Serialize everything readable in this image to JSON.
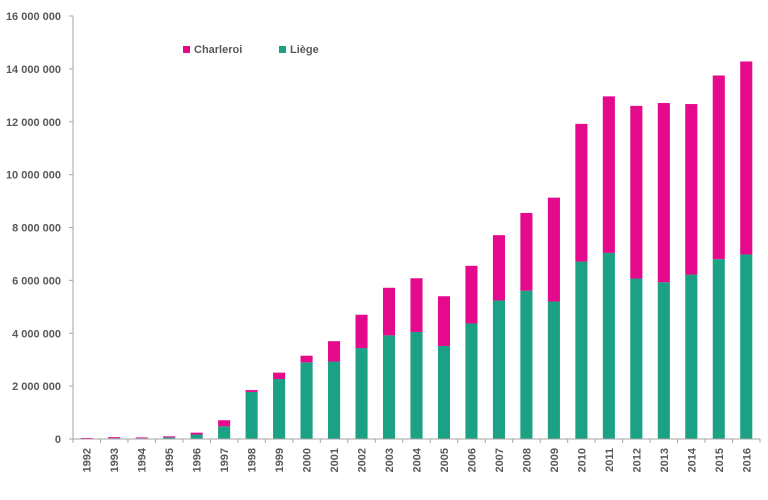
{
  "chart_data": {
    "type": "bar",
    "stacked": true,
    "categories": [
      "1992",
      "1993",
      "1994",
      "1995",
      "1996",
      "1997",
      "1998",
      "1999",
      "2000",
      "2001",
      "2002",
      "2003",
      "2004",
      "2005",
      "2006",
      "2007",
      "2008",
      "2009",
      "2010",
      "2011",
      "2012",
      "2013",
      "2014",
      "2015",
      "2016"
    ],
    "series": [
      {
        "name": "Liège",
        "color": "#1ba184",
        "values": [
          20000,
          30000,
          30000,
          60000,
          170000,
          480000,
          1780000,
          2270000,
          2900000,
          2930000,
          3440000,
          3920000,
          4050000,
          3520000,
          4370000,
          5240000,
          5610000,
          5200000,
          6710000,
          7040000,
          6070000,
          5930000,
          6220000,
          6800000,
          6980000
        ]
      },
      {
        "name": "Charleroi",
        "color": "#e5098c",
        "values": [
          20000,
          40000,
          30000,
          40000,
          70000,
          230000,
          70000,
          240000,
          250000,
          770000,
          1260000,
          1800000,
          2030000,
          1880000,
          2180000,
          2470000,
          2940000,
          3930000,
          5210000,
          5920000,
          6530000,
          6780000,
          6450000,
          6950000,
          7300000
        ]
      }
    ],
    "ylim": [
      0,
      16000000
    ],
    "yticks": [
      0,
      2000000,
      4000000,
      6000000,
      8000000,
      10000000,
      12000000,
      14000000,
      16000000
    ],
    "ytick_labels": [
      "0",
      "2 000 000",
      "4 000 000",
      "6 000 000",
      "8 000 000",
      "10 000 000",
      "12 000 000",
      "14 000 000",
      "16 000 000"
    ],
    "grid": false,
    "legend_position": "top-left",
    "title": "",
    "xlabel": "",
    "ylabel": ""
  }
}
